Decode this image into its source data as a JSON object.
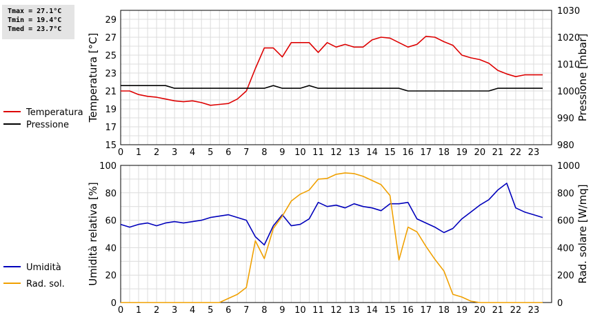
{
  "stats": {
    "tmax": "Tmax = 27.1°C",
    "tmin": "Tmin = 19.4°C",
    "tmed": "Tmed = 23.7°C"
  },
  "chart_data": [
    {
      "type": "line",
      "title": "",
      "x_ticks": [
        0,
        1,
        2,
        3,
        4,
        5,
        6,
        7,
        8,
        9,
        10,
        11,
        12,
        13,
        14,
        15,
        16,
        17,
        18,
        19,
        20,
        21,
        22,
        23
      ],
      "xlim": [
        0,
        24
      ],
      "y_left": {
        "label": "Temperatura [°C]",
        "range": [
          15,
          30
        ],
        "ticks": [
          15,
          17,
          19,
          21,
          23,
          25,
          27,
          29
        ]
      },
      "y_right": {
        "label": "Pressione [mbar]",
        "range": [
          980,
          1030
        ],
        "ticks": [
          980,
          990,
          1000,
          1010,
          1020,
          1030
        ]
      },
      "grid": true,
      "legend_position": "left",
      "series": [
        {
          "name": "Temperatura",
          "axis": "left",
          "color": "#dd0000",
          "x": [
            0,
            0.5,
            1,
            1.5,
            2,
            2.5,
            3,
            3.5,
            4,
            4.5,
            5,
            5.5,
            6,
            6.5,
            7,
            7.5,
            8,
            8.5,
            9,
            9.5,
            10,
            10.5,
            11,
            11.5,
            12,
            12.5,
            13,
            13.5,
            14,
            14.5,
            15,
            15.5,
            16,
            16.5,
            17,
            17.5,
            18,
            18.5,
            19,
            19.5,
            20,
            20.5,
            21,
            21.5,
            22,
            22.5,
            23,
            23.5
          ],
          "y": [
            21.0,
            21.0,
            20.6,
            20.4,
            20.3,
            20.1,
            19.9,
            19.8,
            19.9,
            19.7,
            19.4,
            19.5,
            19.6,
            20.1,
            21.0,
            23.5,
            25.8,
            25.8,
            24.8,
            26.4,
            26.4,
            26.4,
            25.3,
            26.4,
            25.9,
            26.2,
            25.9,
            25.9,
            26.7,
            27.0,
            26.9,
            26.4,
            25.9,
            26.2,
            27.1,
            27.0,
            26.5,
            26.1,
            25.0,
            24.7,
            24.5,
            24.1,
            23.3,
            22.9,
            22.6,
            22.8,
            22.8,
            22.8
          ]
        },
        {
          "name": "Pressione",
          "axis": "right",
          "color": "#000000",
          "x": [
            0,
            0.5,
            1,
            1.5,
            2,
            2.5,
            3,
            3.5,
            4,
            4.5,
            5,
            5.5,
            6,
            6.5,
            7,
            7.5,
            8,
            8.5,
            9,
            9.5,
            10,
            10.5,
            11,
            11.5,
            12,
            12.5,
            13,
            13.5,
            14,
            14.5,
            15,
            15.5,
            16,
            16.5,
            17,
            17.5,
            18,
            18.5,
            19,
            19.5,
            20,
            20.5,
            21,
            21.5,
            22,
            22.5,
            23,
            23.5
          ],
          "y": [
            1002,
            1002,
            1002,
            1002,
            1002,
            1002,
            1001,
            1001,
            1001,
            1001,
            1001,
            1001,
            1001,
            1001,
            1001,
            1001,
            1001,
            1002,
            1001,
            1001,
            1001,
            1002,
            1001,
            1001,
            1001,
            1001,
            1001,
            1001,
            1001,
            1001,
            1001,
            1001,
            1000,
            1000,
            1000,
            1000,
            1000,
            1000,
            1000,
            1000,
            1000,
            1000,
            1001,
            1001,
            1001,
            1001,
            1001,
            1001
          ]
        }
      ]
    },
    {
      "type": "line",
      "title": "",
      "x_ticks": [
        0,
        1,
        2,
        3,
        4,
        5,
        6,
        7,
        8,
        9,
        10,
        11,
        12,
        13,
        14,
        15,
        16,
        17,
        18,
        19,
        20,
        21,
        22,
        23
      ],
      "xlim": [
        0,
        24
      ],
      "y_left": {
        "label": "Umidità relativa [%]",
        "range": [
          0,
          100
        ],
        "ticks": [
          0,
          20,
          40,
          60,
          80,
          100
        ]
      },
      "y_right": {
        "label": "Rad. solare [W/mq]",
        "range": [
          0,
          1000
        ],
        "ticks": [
          0,
          200,
          400,
          600,
          800,
          1000
        ]
      },
      "grid": true,
      "legend_position": "left",
      "series": [
        {
          "name": "Umidità",
          "axis": "left",
          "color": "#0000bb",
          "x": [
            0,
            0.5,
            1,
            1.5,
            2,
            2.5,
            3,
            3.5,
            4,
            4.5,
            5,
            5.5,
            6,
            6.5,
            7,
            7.5,
            8,
            8.5,
            9,
            9.5,
            10,
            10.5,
            11,
            11.5,
            12,
            12.5,
            13,
            13.5,
            14,
            14.5,
            15,
            15.5,
            16,
            16.5,
            17,
            17.5,
            18,
            18.5,
            19,
            19.5,
            20,
            20.5,
            21,
            21.5,
            22,
            22.5,
            23,
            23.5
          ],
          "y": [
            57,
            55,
            57,
            58,
            56,
            58,
            59,
            58,
            59,
            60,
            62,
            63,
            64,
            62,
            60,
            48,
            42,
            56,
            64,
            56,
            57,
            61,
            73,
            70,
            71,
            69,
            72,
            70,
            69,
            67,
            72,
            72,
            73,
            61,
            58,
            55,
            51,
            54,
            61,
            66,
            71,
            75,
            82,
            87,
            69,
            66,
            64,
            62
          ]
        },
        {
          "name": "Rad. sol.",
          "axis": "right",
          "color": "#f0a000",
          "x": [
            0,
            0.5,
            1,
            1.5,
            2,
            2.5,
            3,
            3.5,
            4,
            4.5,
            5,
            5.5,
            6,
            6.5,
            7,
            7.5,
            8,
            8.5,
            9,
            9.5,
            10,
            10.5,
            11,
            11.5,
            12,
            12.5,
            13,
            13.5,
            14,
            14.5,
            15,
            15.5,
            16,
            16.5,
            17,
            17.5,
            18,
            18.5,
            19,
            19.5,
            20,
            20.5,
            21,
            21.5,
            22,
            22.5,
            23,
            23.5
          ],
          "y": [
            0,
            0,
            0,
            0,
            0,
            0,
            0,
            0,
            0,
            0,
            0,
            0,
            30,
            60,
            110,
            450,
            320,
            540,
            630,
            740,
            790,
            820,
            900,
            905,
            935,
            945,
            940,
            920,
            890,
            860,
            780,
            310,
            550,
            515,
            410,
            315,
            230,
            60,
            40,
            10,
            0,
            0,
            0,
            0,
            0,
            0,
            0,
            0
          ]
        }
      ]
    }
  ]
}
